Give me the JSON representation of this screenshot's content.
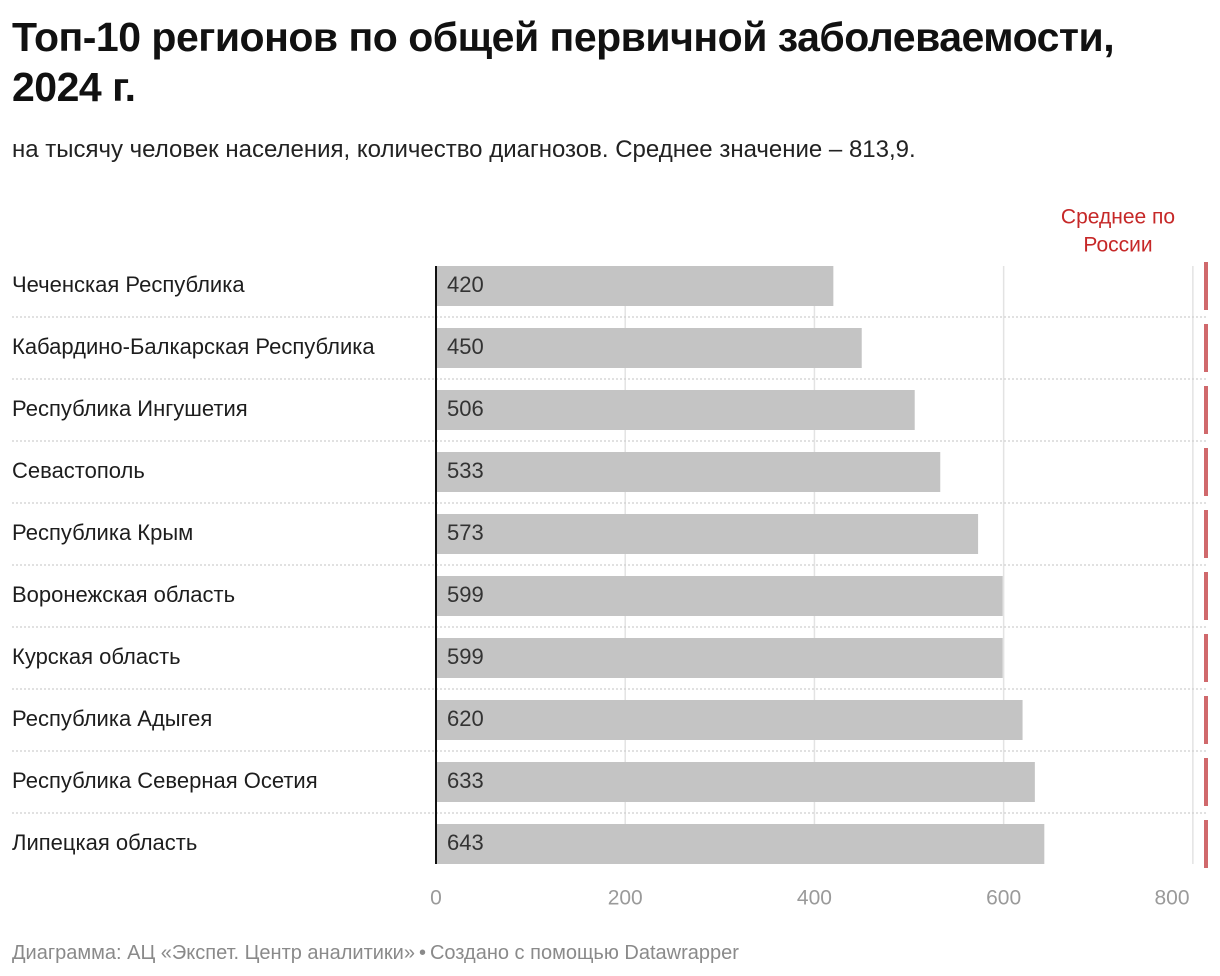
{
  "header": {
    "title": "Топ-10 регионов по общей первичной заболеваемости, 2024 г.",
    "subtitle": "на тысячу человек населения, количество диагнозов. Среднее значение – 813,9."
  },
  "chart_data": {
    "type": "bar",
    "orientation": "horizontal",
    "categories": [
      "Чеченская Республика",
      "Кабардино-Балкарская Республика",
      "Республика Ингушетия",
      "Севастополь",
      "Республика Крым",
      "Воронежская область",
      "Курская область",
      "Республика Адыгея",
      "Республика Северная Осетия",
      "Липецкая область"
    ],
    "values": [
      420,
      450,
      506,
      533,
      573,
      599,
      599,
      620,
      633,
      643
    ],
    "value_labels": [
      "420",
      "450",
      "506",
      "533",
      "573",
      "599",
      "599",
      "620",
      "633",
      "643"
    ],
    "xlim": [
      0,
      813.9
    ],
    "x_ticks": [
      0,
      200,
      400,
      600,
      800
    ],
    "x_tick_labels": [
      "0",
      "200",
      "400",
      "600",
      "800"
    ],
    "grid": true,
    "reference_line": {
      "value": 813.9,
      "label_lines": [
        "Среднее по",
        "России"
      ],
      "color": "#d0696c",
      "label_color": "#c62828"
    },
    "bar_color": "#c4c4c4"
  },
  "footer": {
    "source": "Диаграмма: АЦ «Экспет. Центр аналитики»",
    "separator": "•",
    "credit": "Создано с помощью Datawrapper"
  }
}
